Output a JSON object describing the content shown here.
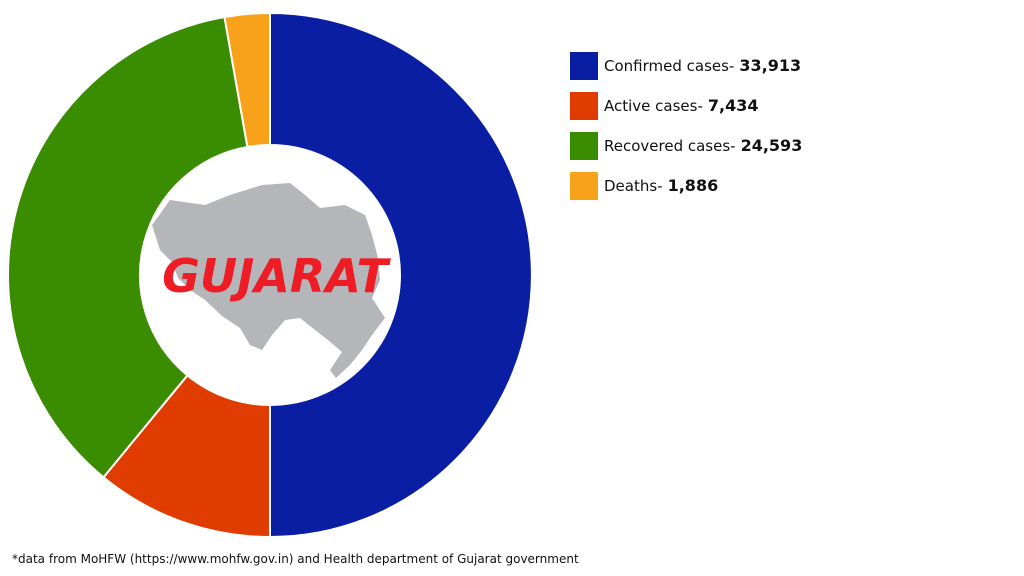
{
  "chart_data": {
    "type": "pie",
    "categories": [
      "Confirmed cases-",
      "Active cases-",
      "Recovered cases-",
      "Deaths-"
    ],
    "values": [
      33913,
      7434,
      24593,
      1886
    ],
    "value_labels": [
      "33,913",
      "7,434",
      "24,593",
      "1,886"
    ],
    "colors": [
      "#0a1ea3",
      "#e03c00",
      "#3a8c00",
      "#f8a21b"
    ],
    "center_label": "GUJARAT",
    "footnote": "*data from MoHFW (https://www.mohfw.gov.in) and Health department of Gujarat government"
  }
}
